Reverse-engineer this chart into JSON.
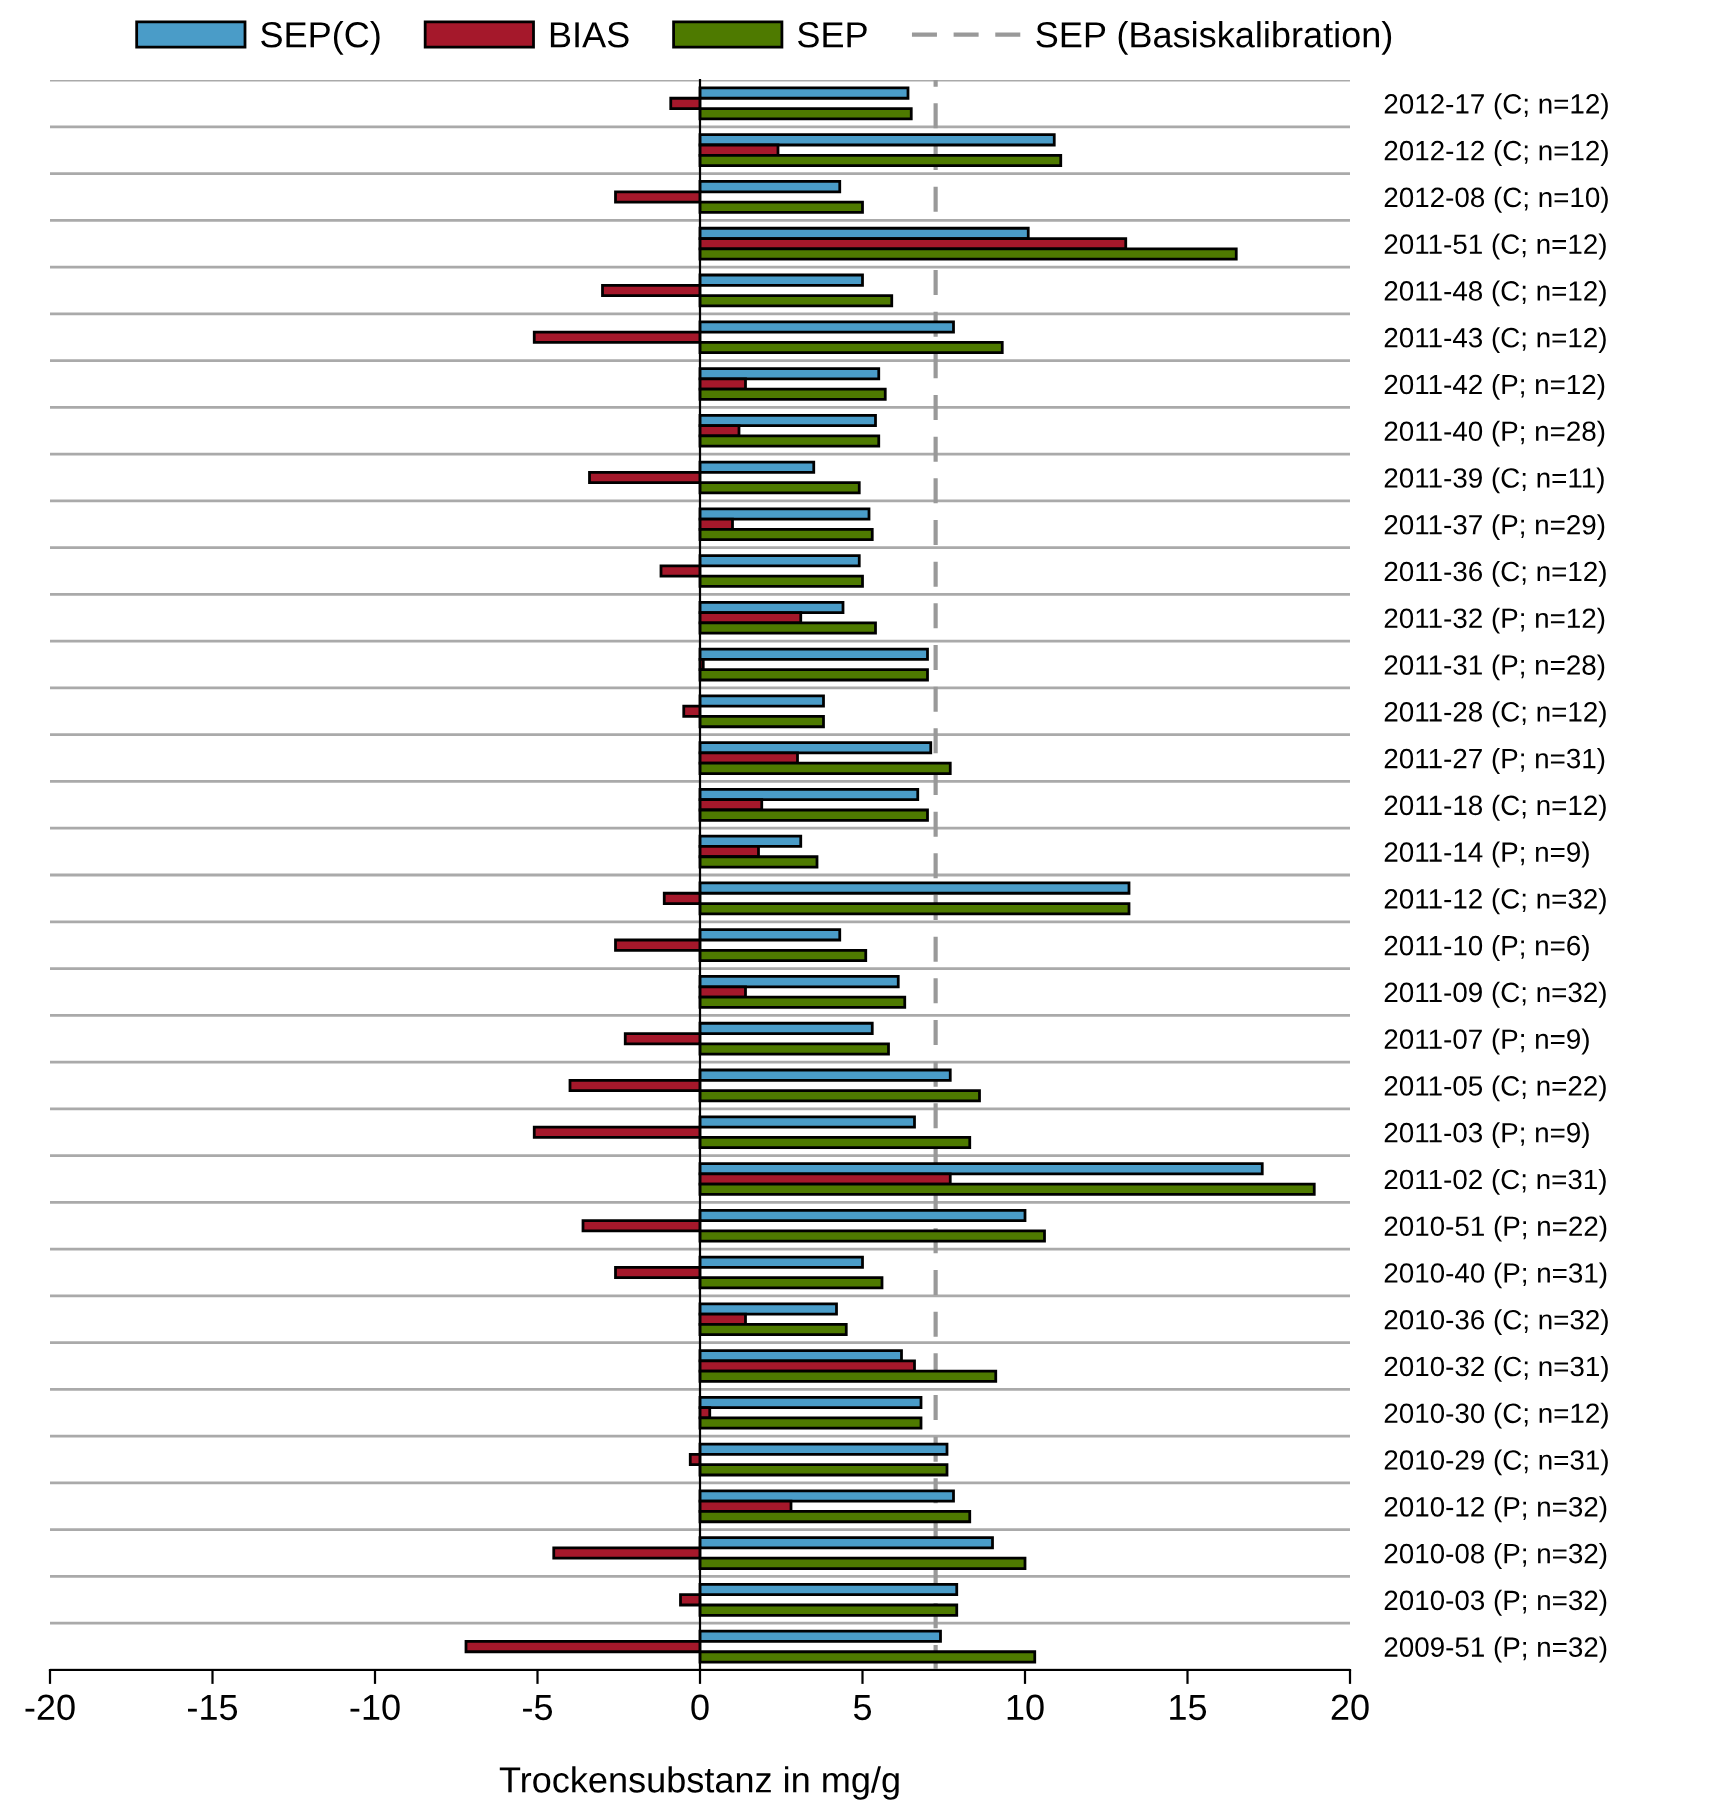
{
  "chart_data": {
    "type": "bar",
    "orientation": "horizontal",
    "xlabel": "Trockensubstanz in mg/g",
    "categories": [
      "2012-17 (C; n=12)",
      "2012-12 (C; n=12)",
      "2012-08 (C; n=10)",
      "2011-51 (C; n=12)",
      "2011-48 (C; n=12)",
      "2011-43 (C; n=12)",
      "2011-42 (P; n=12)",
      "2011-40 (P; n=28)",
      "2011-39 (C; n=11)",
      "2011-37 (P; n=29)",
      "2011-36 (C; n=12)",
      "2011-32 (P; n=12)",
      "2011-31 (P; n=28)",
      "2011-28 (C; n=12)",
      "2011-27 (P; n=31)",
      "2011-18 (C; n=12)",
      "2011-14 (P; n=9)",
      "2011-12 (C; n=32)",
      "2011-10 (P; n=6)",
      "2011-09 (C; n=32)",
      "2011-07 (P; n=9)",
      "2011-05 (C; n=22)",
      "2011-03 (P; n=9)",
      "2011-02 (C; n=31)",
      "2010-51 (P; n=22)",
      "2010-40 (P; n=31)",
      "2010-36 (C; n=32)",
      "2010-32 (C; n=31)",
      "2010-30 (C; n=12)",
      "2010-29 (C; n=31)",
      "2010-12 (P; n=32)",
      "2010-08 (P; n=32)",
      "2010-03 (P; n=32)",
      "2009-51 (P; n=32)"
    ],
    "series": [
      {
        "name": "SEP(C)",
        "color": "#4a9cc8",
        "values": [
          6.4,
          10.9,
          4.3,
          10.1,
          5.0,
          7.8,
          5.5,
          5.4,
          3.5,
          5.2,
          4.9,
          4.4,
          7.0,
          3.8,
          7.1,
          6.7,
          3.1,
          13.2,
          4.3,
          6.1,
          5.3,
          7.7,
          6.6,
          17.3,
          10.0,
          5.0,
          4.2,
          6.2,
          6.8,
          7.6,
          7.8,
          9.0,
          7.9,
          7.4
        ]
      },
      {
        "name": "BIAS",
        "color": "#a5182b",
        "values": [
          -0.9,
          2.4,
          -2.6,
          13.1,
          -3.0,
          -5.1,
          1.4,
          1.2,
          -3.4,
          1.0,
          -1.2,
          3.1,
          0.1,
          -0.5,
          3.0,
          1.9,
          1.8,
          -1.1,
          -2.6,
          1.4,
          -2.3,
          -4.0,
          -5.1,
          7.7,
          -3.6,
          -2.6,
          1.4,
          6.6,
          0.3,
          -0.3,
          2.8,
          -4.5,
          -0.6,
          -7.2
        ]
      },
      {
        "name": "SEP",
        "color": "#4e7a00",
        "values": [
          6.5,
          11.1,
          5.0,
          16.5,
          5.9,
          9.3,
          5.7,
          5.5,
          4.9,
          5.3,
          5.0,
          5.4,
          7.0,
          3.8,
          7.7,
          7.0,
          3.6,
          13.2,
          5.1,
          6.3,
          5.8,
          8.6,
          8.3,
          18.9,
          10.6,
          5.6,
          4.5,
          9.1,
          6.8,
          7.6,
          8.3,
          10.0,
          7.9,
          10.3
        ]
      }
    ],
    "ref_lines": [
      {
        "axis": "x",
        "value": 7.25,
        "label": "SEP (Basiskalibration)",
        "color": "#999999",
        "line_style": "dashed"
      }
    ],
    "xlim": [
      -20,
      20
    ],
    "xticks": [
      -20,
      -15,
      -10,
      -5,
      0,
      5,
      10,
      15,
      20
    ],
    "grid": "y",
    "legend": "top"
  }
}
